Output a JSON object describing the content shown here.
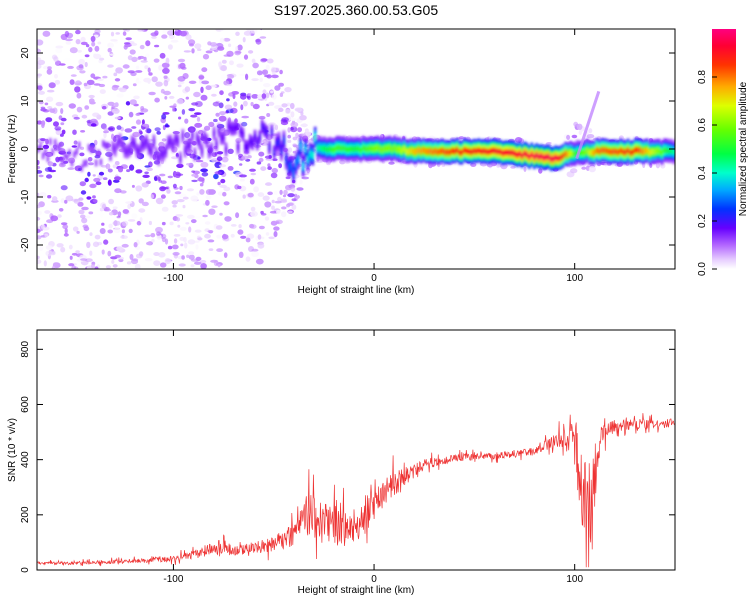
{
  "figure": {
    "title": "S197.2025.360.00.53.G05"
  },
  "chart_data": [
    {
      "type": "heatmap",
      "name": "spectrogram",
      "xlabel": "Height of straight line (km)",
      "ylabel": "Frequency (Hz)",
      "xlim": [
        -168,
        150
      ],
      "ylim": [
        -25,
        25
      ],
      "xticks": [
        -100,
        0,
        100
      ],
      "yticks": [
        -20,
        -10,
        0,
        10,
        20
      ],
      "grid": false,
      "colorbar": {
        "label": "Normalized spectral amplitude",
        "range": [
          0,
          1
        ],
        "ticks": [
          "0.0",
          "0.2",
          "0.4",
          "0.6",
          "0.8"
        ],
        "colors": [
          "#ffffff",
          "#cc99ff",
          "#8a2be2",
          "#3300ff",
          "#0066ff",
          "#00ccff",
          "#00ff99",
          "#33ff00",
          "#ccff00",
          "#ffcc00",
          "#ff6600",
          "#ff0000",
          "#ff0066"
        ]
      },
      "ridge": {
        "x": [
          -168,
          -140,
          -120,
          -100,
          -80,
          -60,
          -50,
          -45,
          -40,
          -35,
          -30,
          -20,
          -10,
          0,
          10,
          20,
          40,
          60,
          80,
          90,
          95,
          100,
          105,
          110,
          130,
          150
        ],
        "freq": [
          0,
          -2,
          1,
          0,
          2,
          3,
          1,
          -1,
          -3,
          -1,
          0,
          0,
          0,
          0,
          0,
          -0.5,
          -0.5,
          -0.5,
          -1.5,
          -2,
          -1,
          -1,
          -0.5,
          -0.5,
          -0.5,
          -0.5
        ],
        "peak_amplitude": [
          0.12,
          0.12,
          0.15,
          0.15,
          0.15,
          0.18,
          0.2,
          0.25,
          0.3,
          0.35,
          0.4,
          0.55,
          0.5,
          0.6,
          0.6,
          0.75,
          0.85,
          0.9,
          0.95,
          0.95,
          0.8,
          0.5,
          0.6,
          0.8,
          0.85,
          0.4
        ]
      }
    },
    {
      "type": "line",
      "name": "snr",
      "xlabel": "Height of straight line (km)",
      "ylabel": "SNR (10 * v/v)",
      "xlim": [
        -168,
        150
      ],
      "ylim": [
        0,
        870
      ],
      "xticks": [
        -100,
        0,
        100
      ],
      "yticks": [
        0,
        200,
        400,
        600,
        800
      ],
      "grid": false,
      "series": [
        {
          "name": "SNR",
          "color": "#ee3333",
          "x": [
            -168,
            -150,
            -130,
            -110,
            -100,
            -90,
            -80,
            -75,
            -70,
            -60,
            -50,
            -45,
            -40,
            -37,
            -35,
            -30,
            -25,
            -20,
            -15,
            -10,
            -5,
            0,
            5,
            10,
            15,
            20,
            25,
            30,
            40,
            50,
            60,
            70,
            80,
            85,
            90,
            95,
            98,
            100,
            102,
            104,
            106,
            108,
            110,
            112,
            115,
            120,
            130,
            140,
            150
          ],
          "y": [
            25,
            25,
            30,
            35,
            40,
            55,
            75,
            80,
            70,
            80,
            95,
            110,
            130,
            150,
            180,
            200,
            180,
            190,
            150,
            140,
            190,
            240,
            280,
            310,
            330,
            360,
            380,
            390,
            405,
            410,
            415,
            420,
            430,
            450,
            470,
            480,
            500,
            470,
            350,
            250,
            150,
            200,
            350,
            470,
            510,
            520,
            530,
            530,
            530
          ],
          "noise": [
            8,
            8,
            10,
            12,
            15,
            20,
            35,
            50,
            25,
            30,
            40,
            50,
            60,
            90,
            120,
            120,
            80,
            140,
            100,
            60,
            110,
            90,
            70,
            70,
            60,
            40,
            30,
            25,
            20,
            18,
            18,
            18,
            20,
            25,
            35,
            50,
            60,
            150,
            250,
            300,
            330,
            300,
            200,
            100,
            60,
            30,
            25,
            25,
            25
          ]
        }
      ]
    }
  ]
}
